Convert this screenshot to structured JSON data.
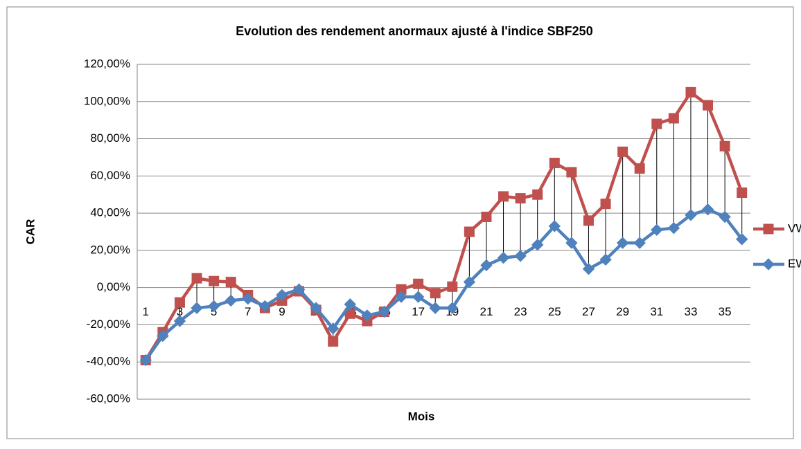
{
  "chart_data": {
    "type": "line",
    "title": "Evolution des rendement anormaux ajusté à l'indice SBF250",
    "x_label": "Mois",
    "y_label": "CAR",
    "categories": [
      1,
      null,
      3,
      null,
      5,
      null,
      7,
      null,
      9,
      null,
      11,
      null,
      13,
      null,
      15,
      null,
      17,
      null,
      19,
      null,
      21,
      null,
      23,
      null,
      25,
      null,
      27,
      null,
      29,
      null,
      31,
      null,
      33,
      null,
      35,
      null
    ],
    "series": [
      {
        "name": "VW",
        "color": "#c0504d",
        "marker": "square",
        "values": [
          -39,
          -24,
          -8,
          5,
          3.5,
          3,
          -4,
          -11,
          -7,
          -2,
          -12,
          -29,
          -14,
          -18,
          -13,
          -1,
          2,
          -3,
          0.5,
          30,
          38,
          49,
          48,
          50,
          67,
          62,
          36,
          45,
          73,
          64,
          88,
          91,
          105,
          98,
          76,
          51
        ]
      },
      {
        "name": "EW",
        "color": "#4f81bd",
        "marker": "diamond",
        "values": [
          -39,
          -26,
          -18,
          -11,
          -10,
          -7,
          -6,
          -10,
          -4,
          -1,
          -11,
          -22,
          -9,
          -15,
          -13,
          -5,
          -5,
          -11,
          -11,
          3,
          12,
          16,
          17,
          23,
          33,
          24,
          10,
          15,
          24,
          24,
          31,
          32,
          39,
          42,
          38,
          26
        ]
      }
    ],
    "high_low_lines": true,
    "ylim": [
      -60,
      120
    ],
    "yticks": [
      {
        "value": -60,
        "label": "-60,00%"
      },
      {
        "value": -40,
        "label": "-40,00%"
      },
      {
        "value": -20,
        "label": "-20,00%"
      },
      {
        "value": 0,
        "label": "0,00%"
      },
      {
        "value": 20,
        "label": "20,00%"
      },
      {
        "value": 40,
        "label": "40,00%"
      },
      {
        "value": 60,
        "label": "60,00%"
      },
      {
        "value": 80,
        "label": "80,00%"
      },
      {
        "value": 100,
        "label": "100,00%"
      },
      {
        "value": 120,
        "label": "120,00%"
      }
    ],
    "grid": true,
    "legend": "right"
  }
}
